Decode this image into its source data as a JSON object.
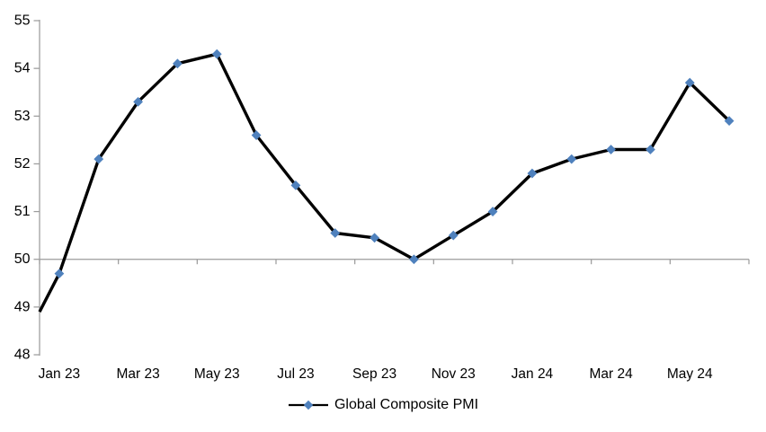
{
  "chart_data": {
    "type": "line",
    "title": "",
    "xlabel": "",
    "ylabel": "",
    "categories": [
      "Jan 23",
      "Feb 23",
      "Mar 23",
      "Apr 23",
      "May 23",
      "Jun 23",
      "Jul 23",
      "Aug 23",
      "Sep 23",
      "Oct 23",
      "Nov 23",
      "Dec 23",
      "Jan 24",
      "Feb 24",
      "Mar 24",
      "Apr 24",
      "May 24",
      "Jun 24"
    ],
    "series": [
      {
        "name": "Global Composite PMI",
        "values": [
          49.7,
          52.1,
          53.3,
          54.1,
          54.3,
          52.6,
          51.55,
          50.55,
          50.45,
          50.0,
          50.5,
          51.0,
          51.8,
          52.1,
          52.3,
          52.3,
          53.7,
          52.9
        ],
        "line_color": "#000000",
        "marker": "diamond",
        "marker_color": "#4F81BD"
      }
    ],
    "leading_edge_point": {
      "value_at_left_edge": 48.9,
      "note": "series line enters the plot from the left edge (y-axis) without a marker, before the Jan 23 point"
    },
    "x_tick_labels": [
      "Jan 23",
      "Mar 23",
      "May 23",
      "Jul 23",
      "Sep 23",
      "Nov 23",
      "Jan 24",
      "Mar 24",
      "May 24"
    ],
    "y_tick_labels": [
      "48",
      "49",
      "50",
      "51",
      "52",
      "53",
      "54",
      "55"
    ],
    "ylim": [
      48,
      55
    ],
    "x_axis_position": 50,
    "grid": "off",
    "legend": {
      "position": "bottom",
      "label": "Global Composite PMI"
    },
    "axis_color": "#9C9C9C",
    "text_color": "#000000"
  }
}
